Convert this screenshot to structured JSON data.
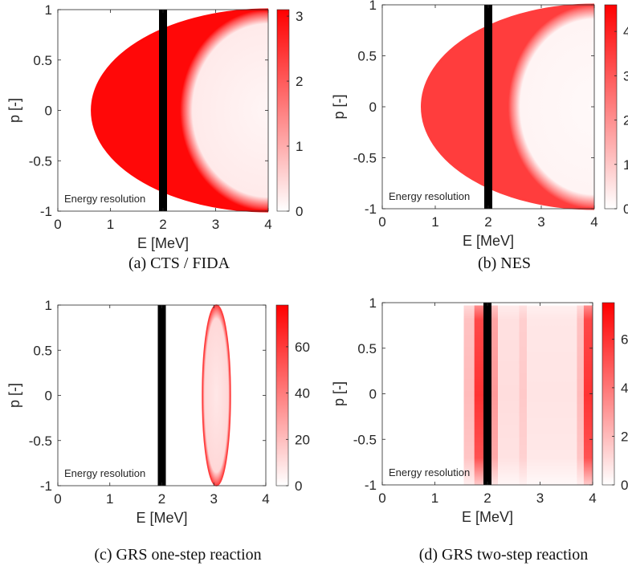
{
  "chart_data": [
    {
      "type": "heatmap",
      "title": "",
      "caption": "(a) CTS / FIDA",
      "xlabel": "E [MeV]",
      "ylabel": "p [-]",
      "xlim": [
        0,
        4
      ],
      "ylim": [
        -1,
        1
      ],
      "xticks": [
        "0",
        "1",
        "2",
        "3",
        "4"
      ],
      "yticks": [
        "1",
        "0.5",
        "0",
        "-0.5",
        "-1"
      ],
      "colorbar": {
        "min": 0,
        "max": 3.1,
        "ticks": [
          "0",
          "1",
          "2",
          "3"
        ]
      },
      "annotation": "Energy resolution",
      "resolution_line_E": 2,
      "pattern": "boundary",
      "boundary_edge": {
        "E_min_at_p0": 0.65,
        "E_at_p_pm1": 4.0
      },
      "edge_value": 3,
      "interior_value": 0.25
    },
    {
      "type": "heatmap",
      "title": "",
      "caption": "(b) NES",
      "xlabel": "E [MeV]",
      "ylabel": "p [-]",
      "xlim": [
        0,
        4
      ],
      "ylim": [
        -1,
        1
      ],
      "xticks": [
        "0",
        "1",
        "2",
        "3",
        "4"
      ],
      "yticks": [
        "1",
        "0.5",
        "0",
        "-0.5",
        "-1"
      ],
      "colorbar": {
        "min": 0,
        "max": 4.6,
        "ticks": [
          "0",
          "1",
          "2",
          "3",
          "4"
        ]
      },
      "annotation": "Energy resolution",
      "resolution_line_E": 2,
      "pattern": "boundary",
      "boundary_edge": {
        "E_min_at_p0": 0.75,
        "E_at_p_pm1": 4.0
      },
      "edge_value": 3.5,
      "interior_value": 0.2
    },
    {
      "type": "heatmap",
      "title": "",
      "caption": "(c) GRS one-step reaction",
      "xlabel": "E [MeV]",
      "ylabel": "p [-]",
      "xlim": [
        0,
        4
      ],
      "ylim": [
        -1,
        1
      ],
      "xticks": [
        "0",
        "1",
        "2",
        "3",
        "4"
      ],
      "yticks": [
        "1",
        "0.5",
        "0",
        "-0.5",
        "-1"
      ],
      "colorbar": {
        "min": 0,
        "max": 78,
        "ticks": [
          "0",
          "20",
          "40",
          "60"
        ]
      },
      "annotation": "Energy resolution",
      "resolution_line_E": 2,
      "pattern": "ellipse",
      "ellipse": {
        "center_E": 3.05,
        "half_width_E": 0.27,
        "p_range": [
          -1,
          1
        ]
      },
      "edge_value": 60,
      "interior_value": 12
    },
    {
      "type": "heatmap",
      "title": "",
      "caption": "(d) GRS two-step reaction",
      "xlabel": "E [MeV]",
      "ylabel": "p [-]",
      "xlim": [
        0,
        4
      ],
      "ylim": [
        -1,
        1
      ],
      "xticks": [
        "0",
        "1",
        "2",
        "3",
        "4"
      ],
      "yticks": [
        "1",
        "0.5",
        "0",
        "-0.5",
        "-1"
      ],
      "colorbar": {
        "min": 0,
        "max": 7.5,
        "ticks": [
          "0",
          "2",
          "4",
          "6"
        ]
      },
      "annotation": "Energy resolution",
      "resolution_line_E": 2,
      "pattern": "bands",
      "bands": [
        {
          "E_range": [
            1.55,
            1.75
          ],
          "value": 2.0
        },
        {
          "E_range": [
            1.75,
            2.05
          ],
          "value": 6.0
        },
        {
          "E_range": [
            2.05,
            2.2
          ],
          "value": 3.0
        },
        {
          "E_range": [
            2.2,
            2.6
          ],
          "value": 1.0
        },
        {
          "E_range": [
            2.6,
            2.75
          ],
          "value": 1.6
        },
        {
          "E_range": [
            2.75,
            3.7
          ],
          "value": 0.8
        },
        {
          "E_range": [
            3.7,
            3.83
          ],
          "value": 2.0
        },
        {
          "E_range": [
            3.83,
            4.0
          ],
          "value": 6.0
        }
      ]
    }
  ]
}
